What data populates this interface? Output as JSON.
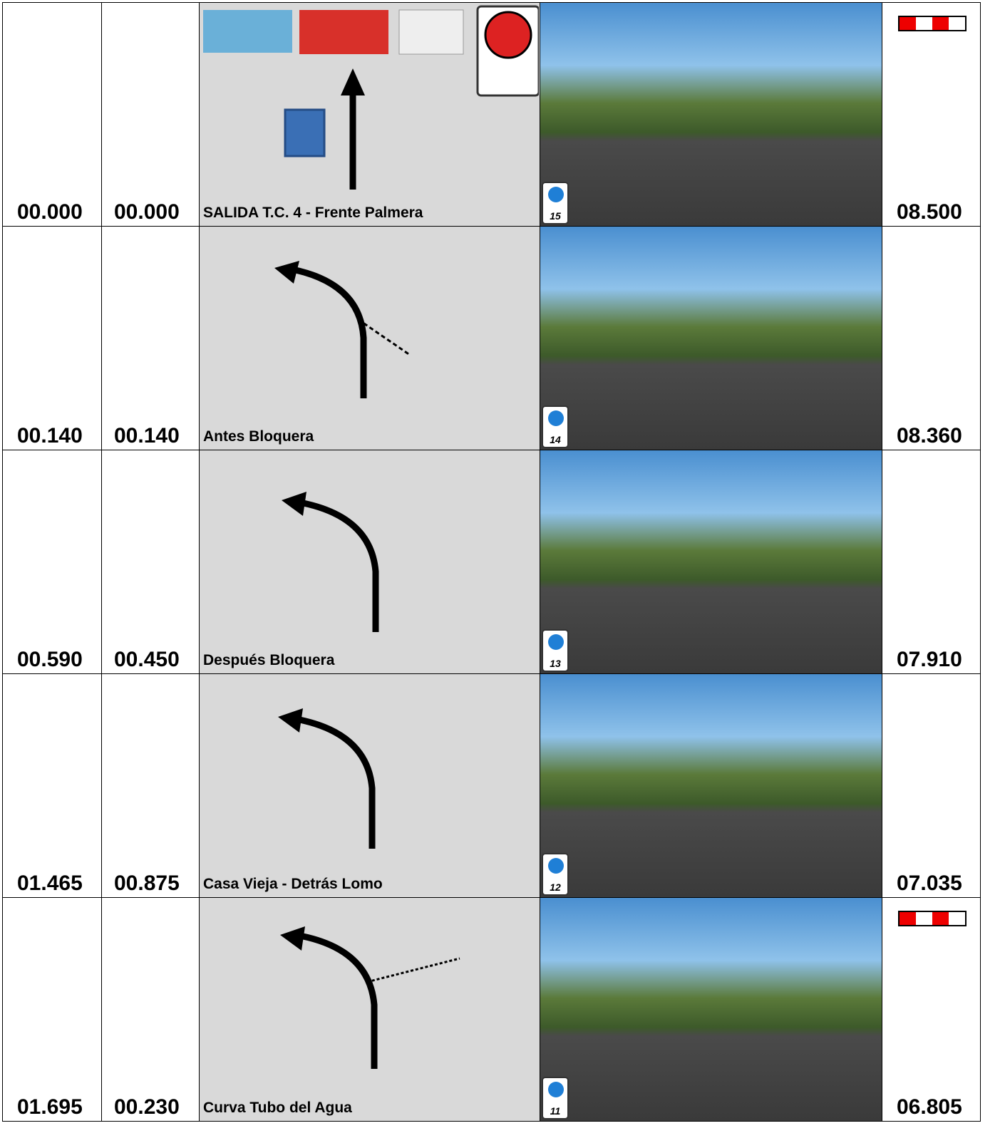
{
  "rows": [
    {
      "total": "00.000",
      "partial": "00.000",
      "description": "SALIDA T.C. 4 - Frente Palmera",
      "badge": "15",
      "remaining": "08.500"
    },
    {
      "total": "00.140",
      "partial": "00.140",
      "description": "Antes Bloquera",
      "badge": "14",
      "remaining": "08.360"
    },
    {
      "total": "00.590",
      "partial": "00.450",
      "description": "Después Bloquera",
      "badge": "13",
      "remaining": "07.910"
    },
    {
      "total": "01.465",
      "partial": "00.875",
      "description": "Casa Vieja - Detrás Lomo",
      "badge": "12",
      "remaining": "07.035"
    },
    {
      "total": "01.695",
      "partial": "00.230",
      "description": "Curva Tubo del Agua",
      "badge": "11",
      "remaining": "06.805"
    }
  ]
}
